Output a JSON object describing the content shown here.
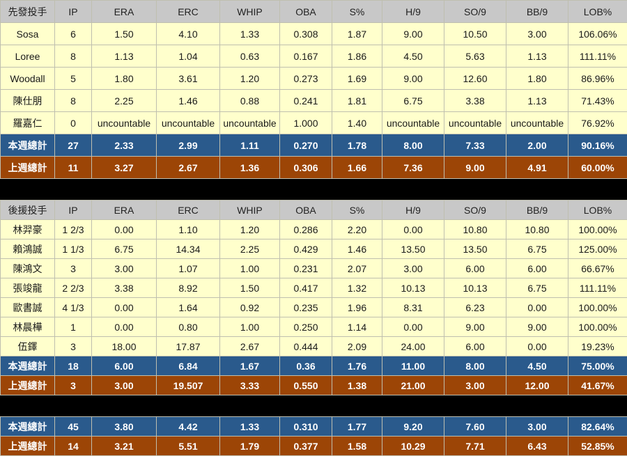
{
  "columns": [
    "IP",
    "ERA",
    "ERC",
    "WHIP",
    "OBA",
    "S%",
    "H/9",
    "SO/9",
    "BB/9",
    "LOB%"
  ],
  "chart_data": [
    {
      "type": "table",
      "title": "先發投手",
      "has_header": true,
      "rows": [
        {
          "type": "player",
          "name": "Sosa",
          "values": [
            "6",
            "1.50",
            "4.10",
            "1.33",
            "0.308",
            "1.87",
            "9.00",
            "10.50",
            "3.00",
            "106.06%"
          ]
        },
        {
          "type": "player",
          "name": "Loree",
          "values": [
            "8",
            "1.13",
            "1.04",
            "0.63",
            "0.167",
            "1.86",
            "4.50",
            "5.63",
            "1.13",
            "111.11%"
          ]
        },
        {
          "type": "player",
          "name": "Woodall",
          "values": [
            "5",
            "1.80",
            "3.61",
            "1.20",
            "0.273",
            "1.69",
            "9.00",
            "12.60",
            "1.80",
            "86.96%"
          ]
        },
        {
          "type": "player",
          "name": "陳仕朋",
          "values": [
            "8",
            "2.25",
            "1.46",
            "0.88",
            "0.241",
            "1.81",
            "6.75",
            "3.38",
            "1.13",
            "71.43%"
          ]
        },
        {
          "type": "player",
          "name": "羅嘉仁",
          "values": [
            "0",
            "uncountable",
            "uncountable",
            "uncountable",
            "1.000",
            "1.40",
            "uncountable",
            "uncountable",
            "uncountable",
            "76.92%"
          ]
        },
        {
          "type": "week-total",
          "name": "本週總計",
          "values": [
            "27",
            "2.33",
            "2.99",
            "1.11",
            "0.270",
            "1.78",
            "8.00",
            "7.33",
            "2.00",
            "90.16%"
          ]
        },
        {
          "type": "lastweek-total",
          "name": "上週總計",
          "values": [
            "11",
            "3.27",
            "2.67",
            "1.36",
            "0.306",
            "1.66",
            "7.36",
            "9.00",
            "4.91",
            "60.00%"
          ]
        }
      ]
    },
    {
      "type": "table",
      "title": "後援投手",
      "has_header": true,
      "rows": [
        {
          "type": "player",
          "name": "林羿豪",
          "values": [
            "1 2/3",
            "0.00",
            "1.10",
            "1.20",
            "0.286",
            "2.20",
            "0.00",
            "10.80",
            "10.80",
            "100.00%"
          ]
        },
        {
          "type": "player",
          "name": "賴鴻誠",
          "values": [
            "1 1/3",
            "6.75",
            "14.34",
            "2.25",
            "0.429",
            "1.46",
            "13.50",
            "13.50",
            "6.75",
            "125.00%"
          ]
        },
        {
          "type": "player",
          "name": "陳鴻文",
          "values": [
            "3",
            "3.00",
            "1.07",
            "1.00",
            "0.231",
            "2.07",
            "3.00",
            "6.00",
            "6.00",
            "66.67%"
          ]
        },
        {
          "type": "player",
          "name": "張竣龍",
          "values": [
            "2 2/3",
            "3.38",
            "8.92",
            "1.50",
            "0.417",
            "1.32",
            "10.13",
            "10.13",
            "6.75",
            "111.11%"
          ]
        },
        {
          "type": "player",
          "name": "歐書誠",
          "values": [
            "4 1/3",
            "0.00",
            "1.64",
            "0.92",
            "0.235",
            "1.96",
            "8.31",
            "6.23",
            "0.00",
            "100.00%"
          ]
        },
        {
          "type": "player",
          "name": "林晨樺",
          "values": [
            "1",
            "0.00",
            "0.80",
            "1.00",
            "0.250",
            "1.14",
            "0.00",
            "9.00",
            "9.00",
            "100.00%"
          ]
        },
        {
          "type": "player",
          "name": "伍鐸",
          "values": [
            "3",
            "18.00",
            "17.87",
            "2.67",
            "0.444",
            "2.09",
            "24.00",
            "6.00",
            "0.00",
            "19.23%"
          ]
        },
        {
          "type": "week-total",
          "name": "本週總計",
          "values": [
            "18",
            "6.00",
            "6.84",
            "1.67",
            "0.36",
            "1.76",
            "11.00",
            "8.00",
            "4.50",
            "75.00%"
          ]
        },
        {
          "type": "lastweek-total",
          "name": "上週總計",
          "values": [
            "3",
            "3.00",
            "19.507",
            "3.33",
            "0.550",
            "1.38",
            "21.00",
            "3.00",
            "12.00",
            "41.67%"
          ]
        }
      ]
    },
    {
      "type": "table",
      "title": "",
      "has_header": false,
      "rows": [
        {
          "type": "week-total",
          "name": "本週總計",
          "values": [
            "45",
            "3.80",
            "4.42",
            "1.33",
            "0.310",
            "1.77",
            "9.20",
            "7.60",
            "3.00",
            "82.64%"
          ]
        },
        {
          "type": "lastweek-total",
          "name": "上週總計",
          "values": [
            "14",
            "3.21",
            "5.51",
            "1.79",
            "0.377",
            "1.58",
            "10.29",
            "7.71",
            "6.43",
            "52.85%"
          ]
        }
      ]
    }
  ],
  "colors": {
    "header_bg": "#c8c8c8",
    "row_bg": "#ffffcc",
    "week_total_bg": "#2a5a8c",
    "lastweek_total_bg": "#9c4506",
    "separator_bg": "#000000",
    "border": "#bfbfaf",
    "total_text": "#ffffff"
  }
}
